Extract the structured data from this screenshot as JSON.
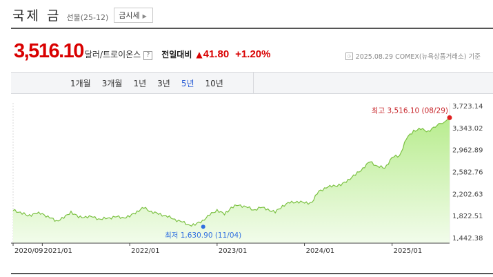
{
  "header": {
    "title": "국제 금",
    "subtitle": "선물(25-12)",
    "sise_button": "금시세"
  },
  "quote": {
    "price": "3,516.10",
    "unit": "달러/트로이온스",
    "help": "?",
    "change_label": "전일대비",
    "change_arrow": "▲",
    "change_value": "41.80",
    "change_pct": "+1.20%"
  },
  "source": {
    "text": "2025.08.29  COMEX(뉴욕상품거래소) 기준"
  },
  "tabs": [
    "1개월",
    "3개월",
    "1년",
    "3년",
    "5년",
    "10년"
  ],
  "active_tab": "5년",
  "chart_data": {
    "type": "area",
    "title": "",
    "xlabel": "",
    "ylabel": "",
    "x_tick_labels": [
      "2020/09",
      "2021/01",
      "2022/01",
      "2023/01",
      "2024/01",
      "2025/01"
    ],
    "y_tick_labels": [
      "3,723.14",
      "3,343.02",
      "2,962.89",
      "2,582.76",
      "2,202.63",
      "1,822.51",
      "1,442.38"
    ],
    "ylim": [
      1442.38,
      3723.14
    ],
    "grid": false,
    "series": [
      {
        "values": [
          [
            "2020-09",
            1910
          ],
          [
            "2020-10",
            1885
          ],
          [
            "2020-11",
            1815
          ],
          [
            "2020-12",
            1860
          ],
          [
            "2021-01",
            1860
          ],
          [
            "2021-02",
            1780
          ],
          [
            "2021-03",
            1740
          ],
          [
            "2021-04",
            1775
          ],
          [
            "2021-05",
            1900
          ],
          [
            "2021-06",
            1785
          ],
          [
            "2021-07",
            1810
          ],
          [
            "2021-08",
            1795
          ],
          [
            "2021-09",
            1760
          ],
          [
            "2021-10",
            1780
          ],
          [
            "2021-11",
            1800
          ],
          [
            "2021-12",
            1795
          ],
          [
            "2022-01",
            1800
          ],
          [
            "2022-02",
            1905
          ],
          [
            "2022-03",
            1950
          ],
          [
            "2022-04",
            1900
          ],
          [
            "2022-05",
            1845
          ],
          [
            "2022-06",
            1825
          ],
          [
            "2022-07",
            1765
          ],
          [
            "2022-08",
            1725
          ],
          [
            "2022-09",
            1670
          ],
          [
            "2022-10",
            1655
          ],
          [
            "2022-11",
            1745
          ],
          [
            "2022-12",
            1825
          ],
          [
            "2023-01",
            1930
          ],
          [
            "2023-02",
            1835
          ],
          [
            "2023-03",
            1970
          ],
          [
            "2023-04",
            2000
          ],
          [
            "2023-05",
            1980
          ],
          [
            "2023-06",
            1920
          ],
          [
            "2023-07",
            1960
          ],
          [
            "2023-08",
            1940
          ],
          [
            "2023-09",
            1870
          ],
          [
            "2023-10",
            2000
          ],
          [
            "2023-11",
            2040
          ],
          [
            "2023-12",
            2070
          ],
          [
            "2024-01",
            2040
          ],
          [
            "2024-02",
            2050
          ],
          [
            "2024-03",
            2250
          ],
          [
            "2024-04",
            2300
          ],
          [
            "2024-05",
            2350
          ],
          [
            "2024-06",
            2340
          ],
          [
            "2024-07",
            2450
          ],
          [
            "2024-08",
            2520
          ],
          [
            "2024-09",
            2650
          ],
          [
            "2024-10",
            2750
          ],
          [
            "2024-11",
            2680
          ],
          [
            "2024-12",
            2640
          ],
          [
            "2025-01",
            2830
          ],
          [
            "2025-02",
            2860
          ],
          [
            "2025-03",
            3140
          ],
          [
            "2025-04",
            3300
          ],
          [
            "2025-05",
            3310
          ],
          [
            "2025-06",
            3290
          ],
          [
            "2025-07",
            3350
          ],
          [
            "2025-08",
            3516.1
          ]
        ]
      }
    ],
    "annotations": {
      "max_label": "최고 3,516.10 (08/29)",
      "max_point": [
        "2025-08",
        3516.1
      ],
      "min_label": "최저 1,630.90 (11/04)",
      "min_point": [
        "2022-11",
        1630.9
      ]
    },
    "colors": {
      "line": "#7bc142",
      "fill_top": "#b8ec8e",
      "fill_bottom": "#f2fceb",
      "max_marker": "#e02020",
      "min_marker": "#2f6fe0",
      "max_text": "#c8282d",
      "min_text": "#2f6fe0"
    }
  }
}
